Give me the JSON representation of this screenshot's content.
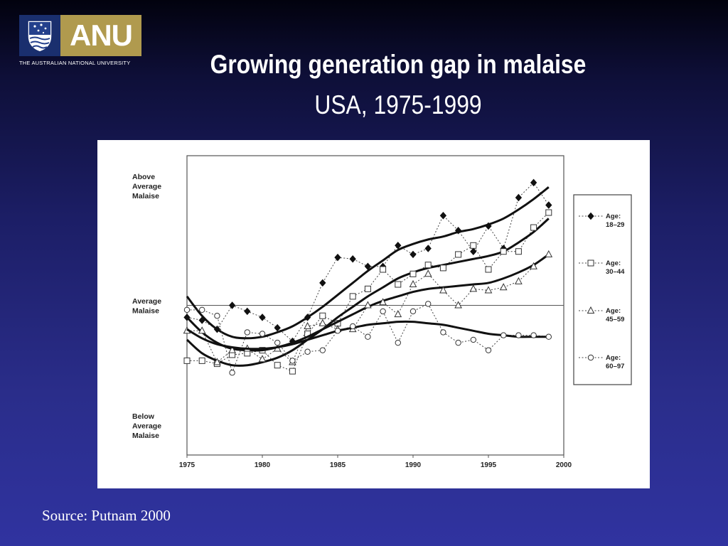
{
  "logo": {
    "wordmark": "ANU",
    "university": "THE AUSTRALIAN NATIONAL UNIVERSITY",
    "colors": {
      "crest": "#1a2f6e",
      "wordmark_bg": "#b09a4e"
    }
  },
  "slide": {
    "title": "Growing generation gap in malaise",
    "subtitle": "USA, 1975-1999",
    "source": "Source: Putnam 2000"
  },
  "chart_data": {
    "type": "line",
    "title": "",
    "xlabel": "",
    "ylabel": "",
    "xlim": [
      1975,
      2000
    ],
    "ylim": [
      -1,
      1
    ],
    "x_ticks": [
      1975,
      1980,
      1985,
      1990,
      1995,
      2000
    ],
    "y_labels": [
      {
        "value": 0.8,
        "lines": [
          "Above",
          "Average",
          "Malaise"
        ]
      },
      {
        "value": 0.0,
        "lines": [
          "Average",
          "Malaise"
        ]
      },
      {
        "value": -0.8,
        "lines": [
          "Below",
          "Average",
          "Malaise"
        ]
      }
    ],
    "reference_line": 0,
    "legend_position": "right",
    "series": [
      {
        "name": "Age: 18–29",
        "label_lines": [
          "Age:",
          "18–29"
        ],
        "marker": "diamond-filled",
        "x": [
          1975,
          1976,
          1977,
          1978,
          1979,
          1980,
          1981,
          1982,
          1983,
          1984,
          1985,
          1986,
          1987,
          1988,
          1989,
          1990,
          1991,
          1992,
          1993,
          1994,
          1995,
          1996,
          1997,
          1998,
          1999
        ],
        "y": [
          -0.08,
          -0.1,
          -0.16,
          0.0,
          -0.04,
          -0.08,
          -0.15,
          -0.24,
          -0.08,
          0.15,
          0.32,
          0.31,
          0.26,
          0.26,
          0.4,
          0.34,
          0.38,
          0.6,
          0.5,
          0.36,
          0.53,
          0.38,
          0.72,
          0.82,
          0.67
        ],
        "trend": [
          0.06,
          -0.07,
          -0.16,
          -0.21,
          -0.22,
          -0.21,
          -0.18,
          -0.14,
          -0.08,
          -0.01,
          0.07,
          0.15,
          0.23,
          0.3,
          0.37,
          0.41,
          0.44,
          0.46,
          0.49,
          0.51,
          0.54,
          0.58,
          0.64,
          0.71,
          0.79
        ]
      },
      {
        "name": "Age: 30–44",
        "label_lines": [
          "Age:",
          "30–44"
        ],
        "marker": "square-open",
        "x": [
          1975,
          1976,
          1977,
          1978,
          1979,
          1980,
          1981,
          1982,
          1983,
          1984,
          1985,
          1986,
          1987,
          1988,
          1989,
          1990,
          1991,
          1992,
          1993,
          1994,
          1995,
          1996,
          1997,
          1998,
          1999
        ],
        "y": [
          -0.37,
          -0.37,
          -0.39,
          -0.33,
          -0.32,
          -0.3,
          -0.4,
          -0.44,
          -0.19,
          -0.07,
          -0.12,
          0.06,
          0.11,
          0.24,
          0.14,
          0.21,
          0.27,
          0.25,
          0.34,
          0.4,
          0.24,
          0.36,
          0.36,
          0.52,
          0.62
        ],
        "trend": [
          -0.23,
          -0.32,
          -0.37,
          -0.4,
          -0.4,
          -0.38,
          -0.35,
          -0.3,
          -0.23,
          -0.16,
          -0.08,
          -0.01,
          0.06,
          0.12,
          0.18,
          0.22,
          0.25,
          0.27,
          0.29,
          0.31,
          0.33,
          0.36,
          0.42,
          0.49,
          0.58
        ]
      },
      {
        "name": "Age: 45–59",
        "label_lines": [
          "Age:",
          "45–59"
        ],
        "marker": "triangle-open",
        "x": [
          1975,
          1976,
          1977,
          1978,
          1979,
          1980,
          1981,
          1982,
          1983,
          1984,
          1985,
          1986,
          1987,
          1988,
          1989,
          1990,
          1991,
          1992,
          1993,
          1994,
          1995,
          1996,
          1997,
          1998,
          1999
        ],
        "y": [
          -0.17,
          -0.17,
          -0.38,
          -0.3,
          -0.29,
          -0.36,
          -0.29,
          -0.38,
          -0.14,
          -0.12,
          -0.16,
          -0.16,
          0.0,
          0.02,
          -0.06,
          0.14,
          0.21,
          0.1,
          0.0,
          0.11,
          0.1,
          0.12,
          0.16,
          0.26,
          0.34
        ],
        "trend": [
          -0.08,
          -0.18,
          -0.25,
          -0.29,
          -0.3,
          -0.3,
          -0.28,
          -0.25,
          -0.21,
          -0.16,
          -0.11,
          -0.06,
          -0.01,
          0.03,
          0.06,
          0.09,
          0.11,
          0.12,
          0.13,
          0.14,
          0.15,
          0.18,
          0.22,
          0.27,
          0.34
        ]
      },
      {
        "name": "Age: 60–97",
        "label_lines": [
          "Age:",
          "60–97"
        ],
        "marker": "circle-open",
        "x": [
          1975,
          1976,
          1977,
          1978,
          1979,
          1980,
          1981,
          1982,
          1983,
          1984,
          1985,
          1986,
          1987,
          1988,
          1989,
          1990,
          1991,
          1992,
          1993,
          1994,
          1995,
          1996,
          1997,
          1998,
          1999
        ],
        "y": [
          -0.03,
          -0.03,
          -0.07,
          -0.45,
          -0.18,
          -0.19,
          -0.25,
          -0.37,
          -0.31,
          -0.3,
          -0.17,
          -0.14,
          -0.21,
          -0.04,
          -0.25,
          -0.04,
          0.01,
          -0.18,
          -0.25,
          -0.23,
          -0.3,
          -0.2,
          -0.2,
          -0.2,
          -0.21
        ],
        "trend": [
          -0.16,
          -0.22,
          -0.26,
          -0.28,
          -0.29,
          -0.29,
          -0.28,
          -0.26,
          -0.23,
          -0.2,
          -0.17,
          -0.15,
          -0.13,
          -0.12,
          -0.11,
          -0.11,
          -0.12,
          -0.13,
          -0.15,
          -0.17,
          -0.19,
          -0.2,
          -0.21,
          -0.21,
          -0.21
        ]
      }
    ]
  }
}
